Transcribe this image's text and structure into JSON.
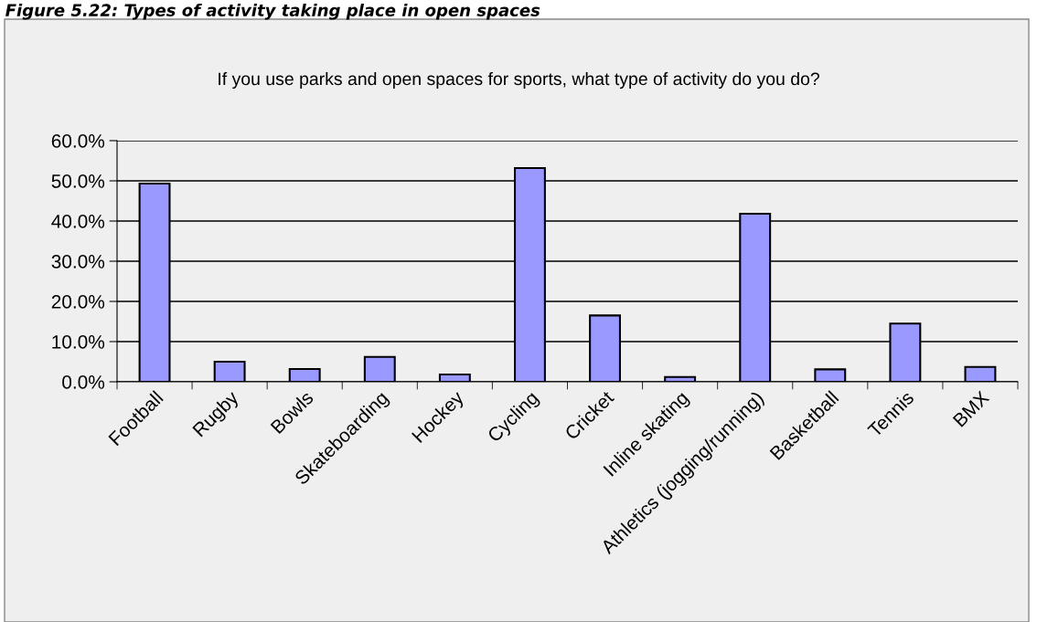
{
  "chart_data": {
    "type": "bar",
    "title": "If you use parks and open spaces for sports, what type of activity do you do?",
    "annotations": [
      "Figure 5.22: Types of activity taking place in open spaces"
    ],
    "categories": [
      "Football",
      "Rugby",
      "Bowls",
      "Skateboarding",
      "Hockey",
      "Cycling",
      "Cricket",
      "Inline skating",
      "Athletics (jogging/running)",
      "Basketball",
      "Tennis",
      "BMX"
    ],
    "values": [
      49.3,
      5.0,
      3.2,
      6.2,
      1.8,
      53.2,
      16.5,
      1.2,
      41.8,
      3.1,
      14.5,
      3.7
    ],
    "color": "#9999ff",
    "ylim": [
      0,
      60
    ],
    "yticks": [
      {
        "value": 0,
        "label": "0.0%"
      },
      {
        "value": 10,
        "label": "10.0%"
      },
      {
        "value": 20,
        "label": "20.0%"
      },
      {
        "value": 30,
        "label": "30.0%"
      },
      {
        "value": 40,
        "label": "40.0%"
      },
      {
        "value": 50,
        "label": "50.0%"
      },
      {
        "value": 60,
        "label": "60.0%"
      }
    ],
    "grid": "y"
  }
}
